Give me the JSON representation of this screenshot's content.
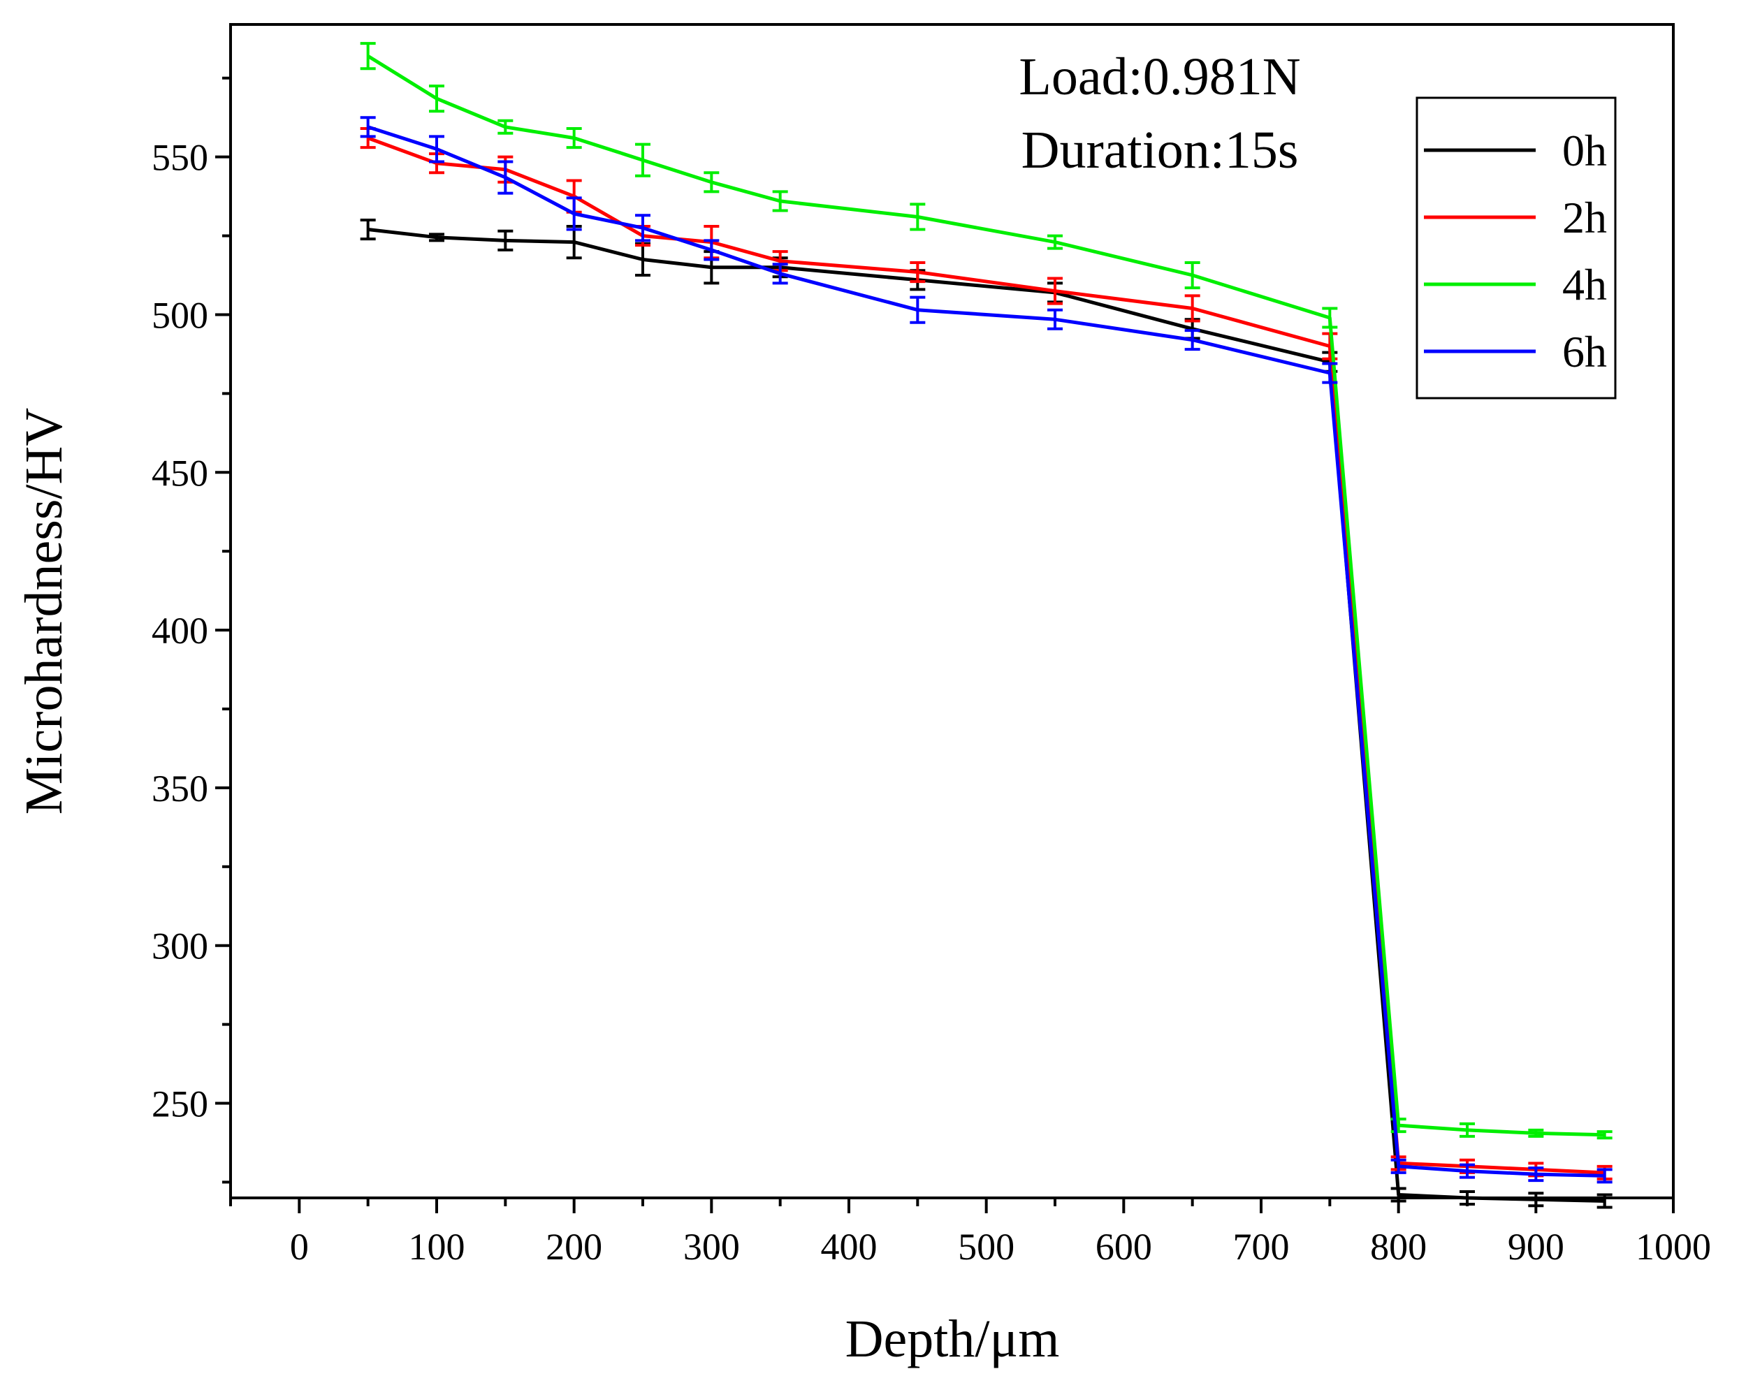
{
  "chart_data": {
    "type": "line",
    "title": "",
    "xlabel": "Depth/μm",
    "ylabel": "Microhardness/HV",
    "xlim": [
      -50,
      1000
    ],
    "ylim": [
      220,
      592
    ],
    "x_ticks": [
      0,
      100,
      200,
      300,
      400,
      500,
      600,
      700,
      800,
      900,
      1000
    ],
    "y_ticks": [
      250,
      300,
      350,
      400,
      450,
      500,
      550
    ],
    "annotations": [
      "Load:0.981N",
      "Duration:15s"
    ],
    "legend_position": "top-right",
    "x": [
      50,
      100,
      150,
      200,
      250,
      300,
      350,
      450,
      550,
      650,
      750,
      800,
      850,
      900,
      950
    ],
    "series": [
      {
        "name": "0h",
        "color": "#000000",
        "values": [
          527,
          524.5,
          523.5,
          523,
          517.5,
          515,
          515,
          511,
          507,
          495.5,
          485,
          221,
          220,
          219.5,
          219
        ],
        "errors": [
          3,
          1,
          3,
          5,
          5,
          5,
          3,
          3,
          3,
          3,
          3,
          2,
          2,
          2,
          2
        ]
      },
      {
        "name": "2h",
        "color": "#ff0000",
        "values": [
          556,
          548,
          546,
          537.5,
          525,
          523,
          517,
          513.5,
          507.5,
          502,
          490,
          231,
          230,
          229,
          228
        ],
        "errors": [
          3,
          3,
          4,
          5,
          3,
          5,
          3,
          3,
          4,
          4,
          4,
          2,
          2,
          2,
          2
        ]
      },
      {
        "name": "4h",
        "color": "#00ee00",
        "values": [
          582,
          568.5,
          559.5,
          556,
          549,
          542,
          536,
          531,
          523,
          512.5,
          499,
          243,
          241.5,
          240.5,
          240
        ],
        "errors": [
          4,
          4,
          2,
          3,
          5,
          3,
          3,
          4,
          2,
          4,
          3,
          2,
          2,
          1,
          1
        ]
      },
      {
        "name": "6h",
        "color": "#0000ff",
        "values": [
          559.5,
          552.5,
          543.5,
          532,
          527.5,
          520.5,
          513,
          501.5,
          498.5,
          492,
          481.5,
          230,
          228.5,
          227.5,
          227
        ],
        "errors": [
          3,
          4,
          5,
          5,
          4,
          3,
          3,
          4,
          3,
          3,
          3,
          2,
          2,
          2,
          2
        ]
      }
    ]
  }
}
